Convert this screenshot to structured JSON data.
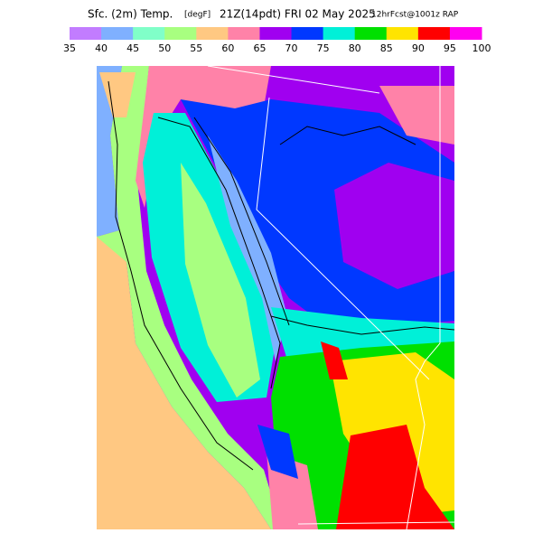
{
  "header": {
    "title": "Sfc. (2m) Temp.",
    "units": "[degF]",
    "valid": "21Z(14pdt) FRI 02 May 2025",
    "forecast": "12hrFcst@1001z RAP"
  },
  "colorbar": {
    "colors": [
      "#c27cff",
      "#7fb0ff",
      "#80ffc8",
      "#a8ff80",
      "#ffc882",
      "#ff82a8",
      "#a000f0",
      "#0038ff",
      "#00f0d8",
      "#00e000",
      "#ffe400",
      "#ff0000",
      "#ff00f0"
    ],
    "labels": [
      35,
      40,
      45,
      50,
      55,
      60,
      65,
      70,
      75,
      80,
      85,
      90,
      95,
      100
    ]
  }
}
